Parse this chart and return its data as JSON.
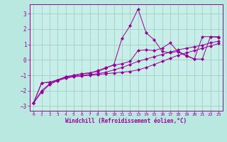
{
  "title": "",
  "xlabel": "Windchill (Refroidissement éolien,°C)",
  "ylabel": "",
  "background_color": "#b8e8e0",
  "plot_bg_color": "#c8eeea",
  "grid_color": "#99ccbb",
  "line_color": "#990099",
  "xlim": [
    -0.5,
    23.5
  ],
  "ylim": [
    -3.3,
    3.6
  ],
  "xticks": [
    0,
    1,
    2,
    3,
    4,
    5,
    6,
    7,
    8,
    9,
    10,
    11,
    12,
    13,
    14,
    15,
    16,
    17,
    18,
    19,
    20,
    21,
    22,
    23
  ],
  "yticks": [
    -3,
    -2,
    -1,
    0,
    1,
    2,
    3
  ],
  "line1_x": [
    0,
    1,
    2,
    3,
    4,
    5,
    6,
    7,
    8,
    9,
    10,
    11,
    12,
    13,
    14,
    15,
    16,
    17,
    18,
    19,
    20,
    21,
    22,
    23
  ],
  "line1_y": [
    -2.8,
    -2.1,
    -1.6,
    -1.35,
    -1.2,
    -1.1,
    -1.05,
    -1.0,
    -0.95,
    -0.9,
    -0.85,
    -0.8,
    -0.75,
    -0.65,
    -0.5,
    -0.3,
    -0.1,
    0.1,
    0.3,
    0.45,
    0.6,
    0.75,
    0.9,
    1.05
  ],
  "line2_x": [
    0,
    1,
    2,
    3,
    4,
    5,
    6,
    7,
    8,
    9,
    10,
    11,
    12,
    13,
    14,
    15,
    16,
    17,
    18,
    19,
    20,
    21,
    22,
    23
  ],
  "line2_y": [
    -2.8,
    -2.0,
    -1.55,
    -1.3,
    -1.15,
    -1.05,
    -1.0,
    -0.95,
    -0.9,
    -0.8,
    -0.65,
    -0.5,
    -0.3,
    -0.1,
    0.05,
    0.2,
    0.35,
    0.5,
    0.65,
    0.75,
    0.85,
    0.95,
    1.1,
    1.2
  ],
  "line3_x": [
    0,
    1,
    2,
    3,
    4,
    5,
    6,
    7,
    8,
    9,
    10,
    11,
    12,
    13,
    14,
    15,
    16,
    17,
    18,
    19,
    20,
    21,
    22,
    23
  ],
  "line3_y": [
    -2.8,
    -1.5,
    -1.45,
    -1.3,
    -1.1,
    -1.0,
    -0.9,
    -0.85,
    -0.75,
    -0.55,
    -0.3,
    1.4,
    2.2,
    3.3,
    1.75,
    1.3,
    0.55,
    0.45,
    0.55,
    0.3,
    0.05,
    0.05,
    1.5,
    1.5
  ],
  "line4_x": [
    0,
    1,
    2,
    3,
    4,
    5,
    6,
    7,
    8,
    9,
    10,
    11,
    12,
    13,
    14,
    15,
    16,
    17,
    18,
    19,
    20,
    21,
    22,
    23
  ],
  "line4_y": [
    -2.8,
    -1.5,
    -1.45,
    -1.3,
    -1.1,
    -1.0,
    -0.9,
    -0.85,
    -0.7,
    -0.5,
    -0.35,
    -0.25,
    -0.1,
    0.6,
    0.65,
    0.6,
    0.75,
    1.1,
    0.5,
    0.25,
    0.05,
    1.5,
    1.5,
    1.45
  ]
}
